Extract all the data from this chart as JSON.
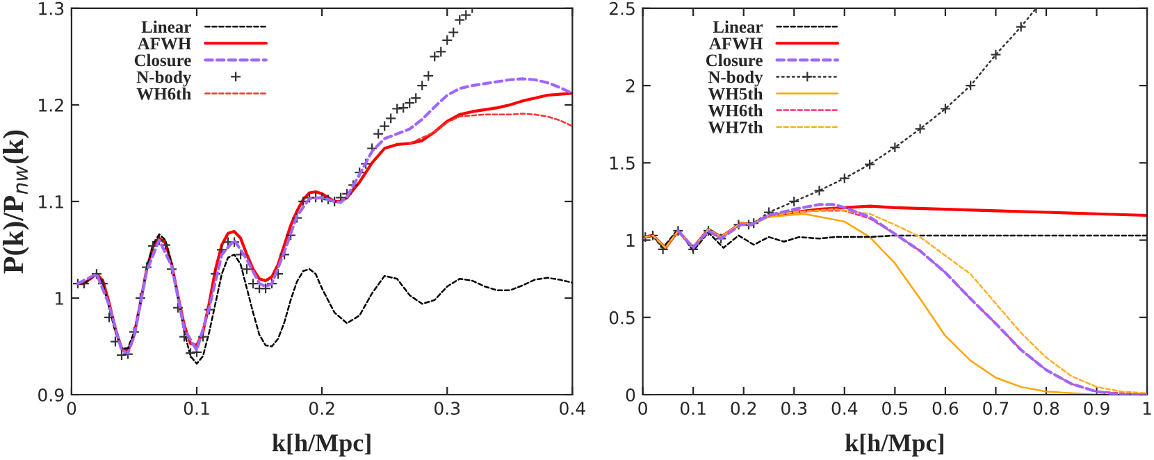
{
  "chart_data": [
    {
      "type": "line",
      "xlabel": "k[h/Mpc]",
      "ylabel": "P(k)/P$_{nw}$(k)",
      "xlim": [
        0,
        0.4
      ],
      "ylim": [
        0.9,
        1.3
      ],
      "xticks": [
        0,
        0.1,
        0.2,
        0.3,
        0.4
      ],
      "yticks": [
        0.9,
        1,
        1.1,
        1.2,
        1.3
      ],
      "legend": "top left",
      "grid": false,
      "series": [
        {
          "name": "Linear",
          "color": "#000000",
          "line_style": "dashed",
          "x": [
            0.005,
            0.01,
            0.015,
            0.02,
            0.025,
            0.03,
            0.035,
            0.04,
            0.045,
            0.05,
            0.055,
            0.06,
            0.065,
            0.07,
            0.075,
            0.08,
            0.085,
            0.09,
            0.095,
            0.1,
            0.105,
            0.11,
            0.115,
            0.12,
            0.125,
            0.13,
            0.135,
            0.14,
            0.145,
            0.15,
            0.155,
            0.16,
            0.165,
            0.17,
            0.175,
            0.18,
            0.185,
            0.19,
            0.195,
            0.2,
            0.21,
            0.22,
            0.23,
            0.24,
            0.25,
            0.26,
            0.27,
            0.28,
            0.29,
            0.3,
            0.31,
            0.32,
            0.33,
            0.34,
            0.35,
            0.36,
            0.37,
            0.38,
            0.39,
            0.4
          ],
          "values": [
            1.015,
            1.015,
            1.02,
            1.025,
            1.015,
            0.99,
            0.965,
            0.948,
            0.948,
            0.965,
            0.995,
            1.03,
            1.055,
            1.066,
            1.06,
            1.035,
            1.0,
            0.965,
            0.94,
            0.932,
            0.94,
            0.965,
            0.995,
            1.025,
            1.042,
            1.045,
            1.035,
            1.01,
            0.985,
            0.962,
            0.951,
            0.95,
            0.958,
            0.975,
            0.998,
            1.017,
            1.028,
            1.03,
            1.025,
            1.01,
            0.985,
            0.974,
            0.982,
            1.005,
            1.023,
            1.02,
            1.003,
            0.994,
            0.998,
            1.012,
            1.02,
            1.018,
            1.012,
            1.008,
            1.008,
            1.013,
            1.019,
            1.021,
            1.019,
            1.016
          ]
        },
        {
          "name": "AFWH",
          "color": "#ff0000",
          "line_style": "solid",
          "x": [
            0.005,
            0.01,
            0.015,
            0.02,
            0.025,
            0.03,
            0.035,
            0.04,
            0.045,
            0.05,
            0.055,
            0.06,
            0.065,
            0.07,
            0.075,
            0.08,
            0.085,
            0.09,
            0.095,
            0.1,
            0.105,
            0.11,
            0.115,
            0.12,
            0.125,
            0.13,
            0.135,
            0.14,
            0.145,
            0.15,
            0.155,
            0.16,
            0.165,
            0.17,
            0.175,
            0.18,
            0.185,
            0.19,
            0.195,
            0.2,
            0.205,
            0.21,
            0.215,
            0.22,
            0.23,
            0.24,
            0.25,
            0.26,
            0.27,
            0.28,
            0.29,
            0.3,
            0.31,
            0.32,
            0.33,
            0.34,
            0.35,
            0.36,
            0.37,
            0.38,
            0.39,
            0.4
          ],
          "values": [
            1.015,
            1.015,
            1.02,
            1.025,
            1.018,
            0.995,
            0.968,
            0.948,
            0.945,
            0.962,
            0.995,
            1.03,
            1.053,
            1.062,
            1.057,
            1.035,
            1.002,
            0.972,
            0.953,
            0.951,
            0.965,
            0.995,
            1.03,
            1.055,
            1.067,
            1.069,
            1.062,
            1.045,
            1.03,
            1.02,
            1.018,
            1.022,
            1.035,
            1.055,
            1.075,
            1.09,
            1.102,
            1.109,
            1.11,
            1.108,
            1.104,
            1.1,
            1.1,
            1.104,
            1.12,
            1.14,
            1.155,
            1.159,
            1.16,
            1.163,
            1.172,
            1.183,
            1.19,
            1.193,
            1.195,
            1.197,
            1.2,
            1.204,
            1.207,
            1.21,
            1.211,
            1.212
          ]
        },
        {
          "name": "Closure",
          "color": "#a066ff",
          "line_style": "dashed",
          "x": [
            0.005,
            0.02,
            0.03,
            0.04,
            0.045,
            0.05,
            0.06,
            0.07,
            0.08,
            0.09,
            0.1,
            0.11,
            0.12,
            0.13,
            0.14,
            0.15,
            0.155,
            0.16,
            0.17,
            0.18,
            0.19,
            0.2,
            0.21,
            0.215,
            0.22,
            0.23,
            0.24,
            0.25,
            0.26,
            0.27,
            0.28,
            0.29,
            0.3,
            0.31,
            0.32,
            0.33,
            0.34,
            0.35,
            0.36,
            0.37,
            0.38,
            0.39,
            0.4
          ],
          "values": [
            1.015,
            1.025,
            0.993,
            0.946,
            0.943,
            0.96,
            1.028,
            1.06,
            1.033,
            0.968,
            0.946,
            0.99,
            1.045,
            1.06,
            1.04,
            1.015,
            1.012,
            1.015,
            1.048,
            1.085,
            1.103,
            1.104,
            1.1,
            1.099,
            1.105,
            1.128,
            1.152,
            1.165,
            1.17,
            1.175,
            1.185,
            1.198,
            1.21,
            1.217,
            1.22,
            1.222,
            1.224,
            1.226,
            1.227,
            1.226,
            1.223,
            1.218,
            1.212
          ]
        },
        {
          "name": "N-body",
          "color": "#333333",
          "type": "scatter",
          "marker": "cross",
          "x": [
            0.005,
            0.01,
            0.02,
            0.025,
            0.03,
            0.035,
            0.04,
            0.045,
            0.05,
            0.055,
            0.06,
            0.065,
            0.07,
            0.075,
            0.08,
            0.085,
            0.09,
            0.095,
            0.1,
            0.105,
            0.11,
            0.115,
            0.12,
            0.125,
            0.13,
            0.135,
            0.14,
            0.145,
            0.15,
            0.155,
            0.16,
            0.165,
            0.17,
            0.175,
            0.18,
            0.185,
            0.19,
            0.195,
            0.2,
            0.205,
            0.21,
            0.215,
            0.22,
            0.225,
            0.23,
            0.235,
            0.24,
            0.245,
            0.25,
            0.255,
            0.26,
            0.265,
            0.27,
            0.275,
            0.28,
            0.285,
            0.29,
            0.295,
            0.3,
            0.305,
            0.31,
            0.315,
            0.32
          ],
          "values": [
            1.015,
            1.015,
            1.025,
            1.015,
            0.98,
            0.955,
            0.941,
            0.942,
            0.965,
            1.0,
            1.032,
            1.054,
            1.06,
            1.055,
            1.03,
            0.99,
            0.96,
            0.943,
            0.944,
            0.96,
            0.988,
            1.025,
            1.05,
            1.058,
            1.058,
            1.045,
            1.03,
            1.015,
            1.01,
            1.01,
            1.015,
            1.025,
            1.045,
            1.065,
            1.083,
            1.1,
            1.104,
            1.104,
            1.104,
            1.102,
            1.1,
            1.104,
            1.108,
            1.117,
            1.13,
            1.139,
            1.155,
            1.17,
            1.178,
            1.186,
            1.196,
            1.197,
            1.202,
            1.207,
            1.22,
            1.23,
            1.25,
            1.255,
            1.267,
            1.275,
            1.288,
            1.293,
            1.3
          ]
        },
        {
          "name": "WH6th",
          "color": "#ff3030",
          "line_style": "dashed",
          "x": [
            0.27,
            0.29,
            0.3,
            0.31,
            0.32,
            0.33,
            0.34,
            0.35,
            0.36,
            0.37,
            0.38,
            0.39,
            0.4
          ],
          "values": [
            1.16,
            1.172,
            1.182,
            1.188,
            1.189,
            1.19,
            1.19,
            1.19,
            1.191,
            1.19,
            1.188,
            1.184,
            1.178
          ]
        }
      ]
    },
    {
      "type": "line",
      "xlabel": "k[h/Mpc]",
      "xlim": [
        0,
        1
      ],
      "ylim": [
        0,
        2.5
      ],
      "xticks": [
        0,
        0.1,
        0.2,
        0.3,
        0.4,
        0.5,
        0.6,
        0.7,
        0.8,
        0.9,
        1
      ],
      "yticks": [
        0,
        0.5,
        1,
        1.5,
        2,
        2.5
      ],
      "legend": "top left",
      "grid": false,
      "series": [
        {
          "name": "Linear",
          "color": "#000000",
          "line_style": "dashed",
          "x": [
            0.005,
            0.02,
            0.04,
            0.07,
            0.1,
            0.13,
            0.16,
            0.19,
            0.22,
            0.25,
            0.28,
            0.31,
            0.35,
            0.38,
            0.45,
            0.5,
            0.6,
            0.7,
            0.8,
            0.9,
            1.0
          ],
          "values": [
            1.02,
            1.03,
            0.95,
            1.07,
            0.93,
            1.05,
            0.95,
            1.03,
            0.97,
            1.02,
            0.99,
            1.02,
            1.01,
            1.02,
            1.02,
            1.03,
            1.03,
            1.03,
            1.03,
            1.03,
            1.03
          ]
        },
        {
          "name": "AFWH",
          "color": "#ff0000",
          "line_style": "solid",
          "x": [
            0.005,
            0.02,
            0.045,
            0.07,
            0.1,
            0.13,
            0.155,
            0.195,
            0.215,
            0.25,
            0.3,
            0.35,
            0.4,
            0.45,
            0.5,
            0.6,
            0.7,
            0.8,
            0.9,
            1.0
          ],
          "values": [
            1.02,
            1.03,
            0.95,
            1.06,
            0.95,
            1.07,
            1.02,
            1.11,
            1.1,
            1.16,
            1.18,
            1.2,
            1.21,
            1.22,
            1.21,
            1.2,
            1.19,
            1.18,
            1.17,
            1.16
          ]
        },
        {
          "name": "Closure",
          "color": "#a066ff",
          "line_style": "dashed",
          "x": [
            0.07,
            0.1,
            0.13,
            0.155,
            0.195,
            0.215,
            0.25,
            0.3,
            0.35,
            0.38,
            0.4,
            0.45,
            0.5,
            0.55,
            0.6,
            0.65,
            0.7,
            0.75,
            0.8,
            0.85,
            0.9,
            0.95,
            1.0
          ],
          "values": [
            1.06,
            0.95,
            1.06,
            1.01,
            1.1,
            1.1,
            1.16,
            1.2,
            1.23,
            1.23,
            1.21,
            1.15,
            1.04,
            0.93,
            0.79,
            0.62,
            0.46,
            0.29,
            0.16,
            0.07,
            0.02,
            0.0,
            0.0
          ]
        },
        {
          "name": "N-body",
          "color": "#333333",
          "line_style": "dotted",
          "marker": "cross",
          "x": [
            0.005,
            0.02,
            0.04,
            0.07,
            0.1,
            0.13,
            0.155,
            0.19,
            0.21,
            0.22,
            0.25,
            0.3,
            0.35,
            0.4,
            0.45,
            0.5,
            0.55,
            0.6,
            0.65,
            0.7,
            0.75,
            0.78
          ],
          "values": [
            1.02,
            1.03,
            0.94,
            1.06,
            0.94,
            1.06,
            1.01,
            1.1,
            1.1,
            1.11,
            1.18,
            1.25,
            1.32,
            1.4,
            1.49,
            1.6,
            1.72,
            1.85,
            2.0,
            2.2,
            2.38,
            2.5
          ]
        },
        {
          "name": "WH5th",
          "color": "#ffa500",
          "line_style": "solid",
          "x": [
            0.005,
            0.02,
            0.045,
            0.07,
            0.1,
            0.13,
            0.155,
            0.195,
            0.215,
            0.25,
            0.32,
            0.4,
            0.45,
            0.5,
            0.55,
            0.6,
            0.65,
            0.7,
            0.75,
            0.8,
            0.9,
            1.0
          ],
          "values": [
            1.02,
            1.03,
            0.95,
            1.06,
            0.95,
            1.07,
            1.02,
            1.11,
            1.1,
            1.15,
            1.17,
            1.12,
            1.02,
            0.85,
            0.62,
            0.38,
            0.22,
            0.11,
            0.05,
            0.02,
            0.0,
            0.0
          ]
        },
        {
          "name": "WH6th",
          "color": "#ff3366",
          "line_style": "dashed",
          "x": [
            0.005,
            0.02,
            0.045,
            0.07,
            0.1,
            0.13,
            0.155,
            0.195,
            0.215,
            0.25,
            0.3,
            0.35,
            0.4,
            0.45,
            0.5,
            0.55,
            0.6,
            0.65,
            0.7,
            0.75,
            0.8,
            0.85,
            0.9,
            0.95,
            1.0
          ],
          "values": [
            1.02,
            1.03,
            0.95,
            1.06,
            0.95,
            1.07,
            1.02,
            1.11,
            1.1,
            1.16,
            1.18,
            1.19,
            1.19,
            1.14,
            1.04,
            0.93,
            0.79,
            0.62,
            0.46,
            0.29,
            0.16,
            0.07,
            0.02,
            0.01,
            0.0
          ]
        },
        {
          "name": "WH7th",
          "color": "#ffb020",
          "line_style": "dashed",
          "x": [
            0.005,
            0.02,
            0.045,
            0.07,
            0.1,
            0.13,
            0.155,
            0.195,
            0.215,
            0.25,
            0.3,
            0.38,
            0.45,
            0.5,
            0.55,
            0.6,
            0.65,
            0.7,
            0.75,
            0.8,
            0.85,
            0.9,
            0.95,
            1.0
          ],
          "values": [
            1.02,
            1.03,
            0.95,
            1.06,
            0.95,
            1.07,
            1.02,
            1.11,
            1.1,
            1.16,
            1.18,
            1.2,
            1.17,
            1.1,
            1.02,
            0.9,
            0.78,
            0.59,
            0.4,
            0.24,
            0.12,
            0.05,
            0.02,
            0.01
          ]
        }
      ]
    }
  ]
}
